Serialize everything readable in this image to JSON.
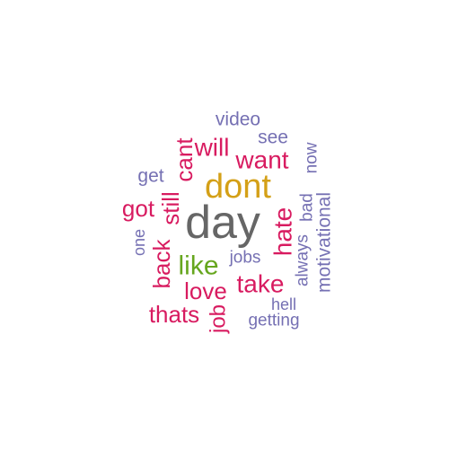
{
  "words": [
    {
      "text": "day",
      "color": "#666666"
    },
    {
      "text": "dont",
      "color": "#d4a017"
    },
    {
      "text": "like",
      "color": "#66a61e"
    },
    {
      "text": "will",
      "color": "#d81b60"
    },
    {
      "text": "want",
      "color": "#d81b60"
    },
    {
      "text": "cant",
      "color": "#d81b60"
    },
    {
      "text": "still",
      "color": "#d81b60"
    },
    {
      "text": "got",
      "color": "#d81b60"
    },
    {
      "text": "back",
      "color": "#d81b60"
    },
    {
      "text": "hate",
      "color": "#d81b60"
    },
    {
      "text": "take",
      "color": "#d81b60"
    },
    {
      "text": "love",
      "color": "#d81b60"
    },
    {
      "text": "thats",
      "color": "#d81b60"
    },
    {
      "text": "job",
      "color": "#d81b60"
    },
    {
      "text": "video",
      "color": "#7570b3"
    },
    {
      "text": "see",
      "color": "#7570b3"
    },
    {
      "text": "now",
      "color": "#7570b3"
    },
    {
      "text": "get",
      "color": "#7570b3"
    },
    {
      "text": "bad",
      "color": "#7570b3"
    },
    {
      "text": "motivational",
      "color": "#7570b3"
    },
    {
      "text": "always",
      "color": "#7570b3"
    },
    {
      "text": "one",
      "color": "#7570b3"
    },
    {
      "text": "jobs",
      "color": "#7570b3"
    },
    {
      "text": "hell",
      "color": "#7570b3"
    },
    {
      "text": "getting",
      "color": "#7570b3"
    }
  ]
}
